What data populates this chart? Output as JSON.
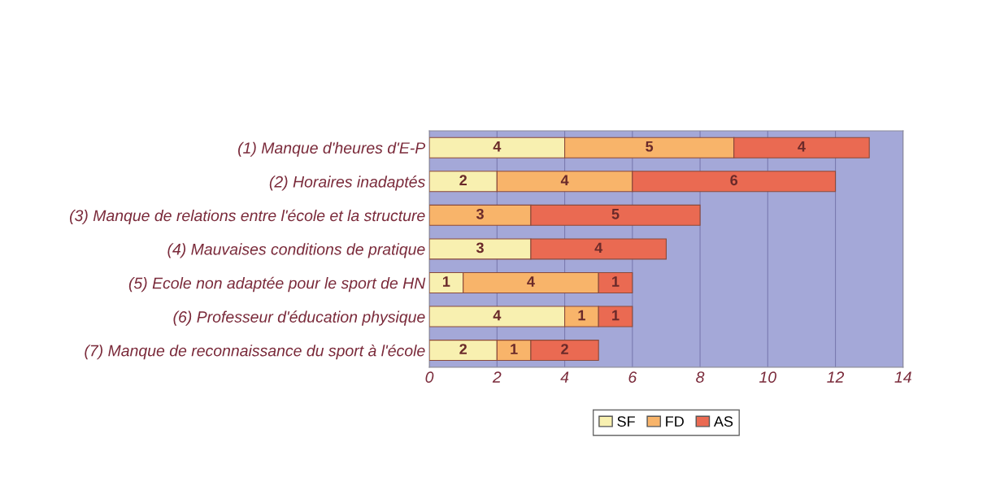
{
  "chart_data": {
    "type": "bar",
    "orientation": "horizontal",
    "stacked": true,
    "categories": [
      "(1) Manque d'heures d'E-P",
      "(2) Horaires inadaptés",
      "(3) Manque de relations entre l'école et la structure",
      "(4) Mauvaises conditions de pratique",
      "(5) Ecole non adaptée pour le sport de HN",
      "(6) Professeur d'éducation physique",
      "(7) Manque de reconnaissance du sport à l'école"
    ],
    "series": [
      {
        "name": "SF",
        "color": "#f8f0b0",
        "values": [
          4,
          2,
          null,
          3,
          1,
          4,
          2
        ]
      },
      {
        "name": "FD",
        "color": "#f8b46a",
        "values": [
          5,
          4,
          3,
          null,
          4,
          1,
          1
        ]
      },
      {
        "name": "AS",
        "color": "#ea6a52",
        "values": [
          4,
          6,
          5,
          4,
          1,
          1,
          2
        ]
      }
    ],
    "xlim": [
      0,
      14
    ],
    "xticks": [
      0,
      2,
      4,
      6,
      8,
      10,
      12,
      14
    ],
    "grid": "x",
    "legend": "bottom",
    "data_labels": true
  }
}
